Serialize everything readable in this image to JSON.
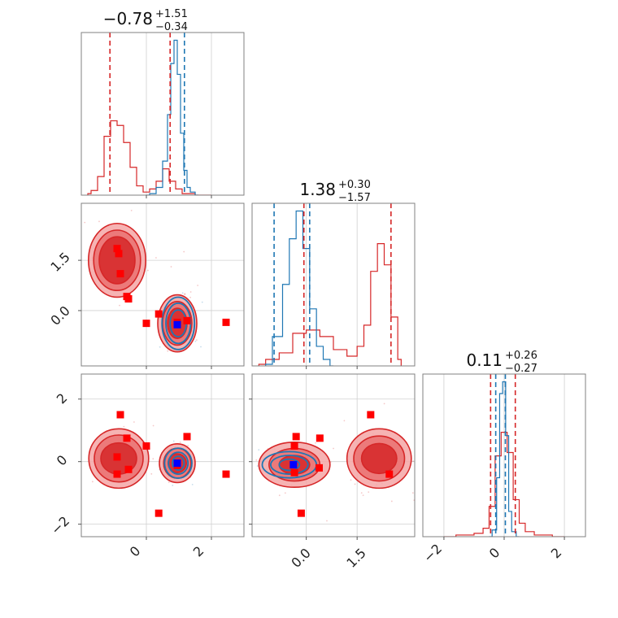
{
  "colors": {
    "red": "#d62728",
    "blue": "#1f77b4",
    "marker_red": "#ff0000",
    "marker_blue": "#0000ff",
    "fill_light": "#f4a6a6",
    "fill_mid": "#ea7070",
    "fill_dark": "#d62728",
    "grid": "#d0d0d0"
  },
  "chart_data": [
    {
      "type": "histogram",
      "panel": "marginal-param-1",
      "title": {
        "value": "−0.78",
        "upper": "+1.51",
        "lower": "−0.34"
      },
      "xlim": [
        -2.0,
        3.0
      ],
      "grid": true,
      "series": [
        {
          "color": "#d62728",
          "x": [
            -1.8,
            -1.6,
            -1.4,
            -1.2,
            -1.0,
            -0.8,
            -0.6,
            -0.4,
            -0.2,
            0.0,
            0.2,
            0.4,
            0.6,
            0.8,
            1.0,
            1.2,
            1.4,
            1.6,
            2.0
          ],
          "density": [
            0.01,
            0.03,
            0.12,
            0.38,
            0.48,
            0.45,
            0.34,
            0.18,
            0.06,
            0.02,
            0.04,
            0.09,
            0.17,
            0.09,
            0.04,
            0.01,
            0.01,
            0.0,
            0.0
          ]
        },
        {
          "color": "#1f77b4",
          "x": [
            0.0,
            0.2,
            0.4,
            0.6,
            0.7,
            0.8,
            0.9,
            1.0,
            1.1,
            1.2,
            1.3,
            1.4,
            1.6
          ],
          "density": [
            0.0,
            0.01,
            0.05,
            0.22,
            0.52,
            0.85,
            1.0,
            0.78,
            0.4,
            0.16,
            0.05,
            0.02,
            0.0
          ]
        }
      ],
      "vlines": [
        {
          "x": -1.12,
          "color": "#d62728"
        },
        {
          "x": 0.73,
          "color": "#d62728"
        },
        {
          "x": 1.17,
          "color": "#1f77b4"
        }
      ]
    },
    {
      "type": "scatter",
      "panel": "joint-param-1-param-2",
      "xlim": [
        -2.0,
        3.0
      ],
      "ylim": [
        -1.65,
        3.2
      ],
      "yticks": [
        "1.5",
        "0.0"
      ],
      "grid": true,
      "contours": [
        {
          "color": "#d62728",
          "cx": -0.9,
          "cy": 1.5,
          "rx": [
            0.88,
            0.72,
            0.55
          ],
          "ry": [
            1.1,
            0.9,
            0.7
          ]
        },
        {
          "color": "#d62728",
          "cx": 0.95,
          "cy": -0.38,
          "rx": [
            0.6,
            0.45,
            0.3
          ],
          "ry": [
            0.85,
            0.65,
            0.45
          ]
        },
        {
          "color": "#1f77b4",
          "cx": 0.98,
          "cy": -0.38,
          "rx": [
            0.5,
            0.38,
            0.25
          ],
          "ry": [
            0.78,
            0.6,
            0.4
          ]
        }
      ],
      "red_markers": [
        [
          -0.9,
          1.85
        ],
        [
          -0.85,
          1.7
        ],
        [
          -0.8,
          1.1
        ],
        [
          -0.6,
          0.42
        ],
        [
          -0.55,
          0.35
        ],
        [
          0.0,
          -0.38
        ],
        [
          0.38,
          -0.1
        ],
        [
          0.95,
          -0.35
        ],
        [
          1.25,
          -0.3
        ],
        [
          2.45,
          -0.35
        ]
      ],
      "blue_markers": [
        [
          0.95,
          -0.42
        ]
      ]
    },
    {
      "type": "histogram",
      "panel": "marginal-param-2",
      "title": {
        "value": "1.38",
        "upper": "+0.30",
        "lower": "−1.57"
      },
      "xlim": [
        -1.6,
        3.2
      ],
      "grid": true,
      "series": [
        {
          "color": "#d62728",
          "x": [
            -1.4,
            -1.0,
            -0.6,
            -0.2,
            0.2,
            0.6,
            1.0,
            1.4,
            1.6,
            1.8,
            2.0,
            2.2,
            2.4,
            2.6,
            2.8
          ],
          "density": [
            0.01,
            0.04,
            0.08,
            0.2,
            0.22,
            0.18,
            0.1,
            0.06,
            0.12,
            0.25,
            0.58,
            0.75,
            0.62,
            0.3,
            0.04
          ]
        },
        {
          "color": "#1f77b4",
          "x": [
            -1.2,
            -0.8,
            -0.6,
            -0.4,
            -0.2,
            0.0,
            0.2,
            0.4,
            0.6,
            0.8
          ],
          "density": [
            0.01,
            0.18,
            0.5,
            0.78,
            0.95,
            0.72,
            0.35,
            0.12,
            0.04,
            0.0
          ]
        }
      ],
      "vlines": [
        {
          "x": -0.95,
          "color": "#1f77b4"
        },
        {
          "x": -0.07,
          "color": "#d62728"
        },
        {
          "x": 0.1,
          "color": "#1f77b4"
        },
        {
          "x": 2.5,
          "color": "#d62728"
        }
      ]
    },
    {
      "type": "scatter",
      "panel": "joint-param-1-param-3",
      "xlim": [
        -2.0,
        3.0
      ],
      "ylim": [
        -2.4,
        2.8
      ],
      "xticks": [
        "0",
        "2"
      ],
      "yticks": [
        "2",
        "0",
        "−2"
      ],
      "grid": true,
      "contours": [
        {
          "color": "#d62728",
          "cx": -0.85,
          "cy": 0.1,
          "rx": [
            0.92,
            0.75,
            0.55
          ],
          "ry": [
            0.95,
            0.75,
            0.5
          ]
        },
        {
          "color": "#d62728",
          "cx": 0.95,
          "cy": -0.05,
          "rx": [
            0.55,
            0.42,
            0.28
          ],
          "ry": [
            0.62,
            0.48,
            0.3
          ]
        },
        {
          "color": "#1f77b4",
          "cx": 0.98,
          "cy": -0.05,
          "rx": [
            0.42,
            0.3,
            0.18
          ],
          "ry": [
            0.48,
            0.35,
            0.22
          ]
        }
      ],
      "red_markers": [
        [
          -0.8,
          1.5
        ],
        [
          -0.6,
          0.75
        ],
        [
          0.0,
          0.5
        ],
        [
          1.25,
          0.8
        ],
        [
          -0.9,
          0.15
        ],
        [
          -0.55,
          -0.25
        ],
        [
          -0.9,
          -0.4
        ],
        [
          0.95,
          -0.12
        ],
        [
          2.45,
          -0.4
        ],
        [
          0.38,
          -1.65
        ]
      ],
      "blue_markers": [
        [
          0.95,
          -0.05
        ]
      ]
    },
    {
      "type": "scatter",
      "panel": "joint-param-2-param-3",
      "xlim": [
        -1.6,
        3.2
      ],
      "ylim": [
        -2.4,
        2.8
      ],
      "xticks": [
        "0.0",
        "1.5"
      ],
      "grid": true,
      "contours": [
        {
          "color": "#d62728",
          "cx": 2.15,
          "cy": 0.1,
          "rx": [
            0.95,
            0.75,
            0.52
          ],
          "ry": [
            0.95,
            0.72,
            0.48
          ]
        },
        {
          "color": "#d62728",
          "cx": -0.35,
          "cy": -0.1,
          "rx": [
            1.05,
            0.75,
            0.45
          ],
          "ry": [
            0.72,
            0.52,
            0.3
          ]
        },
        {
          "color": "#1f77b4",
          "cx": -0.5,
          "cy": -0.1,
          "rx": [
            0.8,
            0.55,
            0.3
          ],
          "ry": [
            0.42,
            0.3,
            0.18
          ]
        }
      ],
      "red_markers": [
        [
          -0.3,
          0.8
        ],
        [
          -0.35,
          0.5
        ],
        [
          0.4,
          0.75
        ],
        [
          1.9,
          1.5
        ],
        [
          -0.35,
          -0.35
        ],
        [
          0.38,
          -0.2
        ],
        [
          2.45,
          -0.4
        ],
        [
          -0.15,
          -1.65
        ]
      ],
      "blue_markers": [
        [
          -0.38,
          -0.1
        ]
      ]
    },
    {
      "type": "histogram",
      "panel": "marginal-param-3",
      "title": {
        "value": "0.11",
        "upper": "+0.26",
        "lower": "−0.27"
      },
      "xlim": [
        -2.7,
        2.7
      ],
      "xticks": [
        "−2",
        "0",
        "2"
      ],
      "grid": true,
      "series": [
        {
          "color": "#d62728",
          "x": [
            -2.0,
            -1.2,
            -0.8,
            -0.6,
            -0.4,
            -0.2,
            0.0,
            0.2,
            0.4,
            0.6,
            0.8,
            1.2,
            2.0
          ],
          "density": [
            0.0,
            0.01,
            0.02,
            0.05,
            0.18,
            0.48,
            0.62,
            0.5,
            0.22,
            0.08,
            0.03,
            0.01,
            0.0
          ]
        },
        {
          "color": "#1f77b4",
          "x": [
            -0.5,
            -0.3,
            -0.2,
            -0.1,
            0.0,
            0.1,
            0.2,
            0.3,
            0.5
          ],
          "density": [
            0.0,
            0.04,
            0.35,
            0.85,
            0.92,
            0.6,
            0.15,
            0.03,
            0.0
          ]
        }
      ],
      "vlines": [
        {
          "x": -0.45,
          "color": "#d62728"
        },
        {
          "x": -0.28,
          "color": "#1f77b4"
        },
        {
          "x": 0.04,
          "color": "#1f77b4"
        },
        {
          "x": 0.37,
          "color": "#d62728"
        }
      ]
    }
  ]
}
